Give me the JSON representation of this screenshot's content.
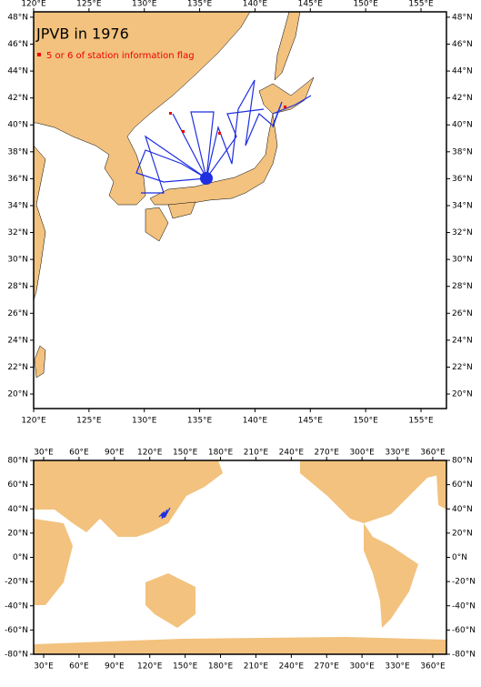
{
  "maps": [
    {
      "title": "JPVB in 1976",
      "legend": "5 or 6 of station information flag",
      "xlim": [
        120,
        157.3
      ],
      "ylim": [
        18.92,
        48.4
      ],
      "xticks": [
        {
          "value": 120,
          "label": "120°E"
        },
        {
          "value": 125,
          "label": "125°E"
        },
        {
          "value": 130,
          "label": "130°E"
        },
        {
          "value": 135,
          "label": "135°E"
        },
        {
          "value": 140,
          "label": "140°E"
        },
        {
          "value": 145,
          "label": "145°E"
        },
        {
          "value": 150,
          "label": "150°E"
        },
        {
          "value": 155,
          "label": "155°E"
        }
      ],
      "yticks": [
        {
          "value": 20,
          "label": "20°N"
        },
        {
          "value": 22,
          "label": "22°N"
        },
        {
          "value": 24,
          "label": "24°N"
        },
        {
          "value": 26,
          "label": "26°N"
        },
        {
          "value": 28,
          "label": "28°N"
        },
        {
          "value": 30,
          "label": "30°N"
        },
        {
          "value": 32,
          "label": "32°N"
        },
        {
          "value": 34,
          "label": "34°N"
        },
        {
          "value": 36,
          "label": "36°N"
        },
        {
          "value": 38,
          "label": "38°N"
        },
        {
          "value": 40,
          "label": "40°N"
        },
        {
          "value": 42,
          "label": "42°N"
        },
        {
          "value": 44,
          "label": "44°N"
        },
        {
          "value": 46,
          "label": "46°N"
        },
        {
          "value": 48,
          "label": "48°N"
        }
      ]
    },
    {
      "xlim": [
        21.5,
        371.6
      ],
      "ylim": [
        -80,
        80
      ],
      "xticks": [
        {
          "value": 30,
          "label": "30°E"
        },
        {
          "value": 60,
          "label": "60°E"
        },
        {
          "value": 90,
          "label": "90°E"
        },
        {
          "value": 120,
          "label": "120°E"
        },
        {
          "value": 150,
          "label": "150°E"
        },
        {
          "value": 180,
          "label": "180°E"
        },
        {
          "value": 210,
          "label": "210°E"
        },
        {
          "value": 240,
          "label": "240°E"
        },
        {
          "value": 270,
          "label": "270°E"
        },
        {
          "value": 300,
          "label": "300°E"
        },
        {
          "value": 330,
          "label": "330°E"
        },
        {
          "value": 360,
          "label": "360°E"
        }
      ],
      "yticks": [
        {
          "value": 80,
          "label": "80°N"
        },
        {
          "value": 60,
          "label": "60°N"
        },
        {
          "value": 40,
          "label": "40°N"
        },
        {
          "value": 20,
          "label": "20°N"
        },
        {
          "value": 0,
          "label": "0°N"
        },
        {
          "value": -20,
          "label": "-20°N"
        },
        {
          "value": -40,
          "label": "-40°N"
        },
        {
          "value": -60,
          "label": "-60°N"
        },
        {
          "value": -80,
          "label": "-80°N"
        }
      ]
    }
  ]
}
